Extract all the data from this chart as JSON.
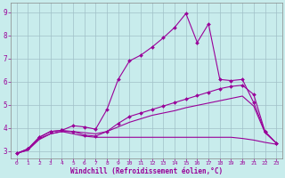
{
  "xlabel": "Windchill (Refroidissement éolien,°C)",
  "xlim": [
    -0.5,
    23.5
  ],
  "ylim": [
    2.7,
    9.4
  ],
  "xticks": [
    0,
    1,
    2,
    3,
    4,
    5,
    6,
    7,
    8,
    9,
    10,
    11,
    12,
    13,
    14,
    15,
    16,
    17,
    18,
    19,
    20,
    21,
    22,
    23
  ],
  "yticks": [
    3,
    4,
    5,
    6,
    7,
    8,
    9
  ],
  "background_color": "#c8ecec",
  "grid_color": "#a0c0c8",
  "line_color": "#990099",
  "line1_x": [
    0,
    1,
    2,
    3,
    4,
    5,
    6,
    7,
    8,
    9,
    10,
    11,
    12,
    13,
    14,
    15,
    16,
    17,
    18,
    19,
    20,
    21,
    22,
    23
  ],
  "line1_y": [
    2.9,
    3.1,
    3.6,
    3.85,
    3.9,
    4.1,
    4.05,
    3.95,
    4.8,
    6.1,
    6.9,
    7.15,
    7.5,
    7.9,
    8.35,
    8.95,
    7.7,
    8.5,
    6.1,
    6.05,
    6.1,
    5.1,
    3.85,
    3.35
  ],
  "line2_x": [
    0,
    1,
    2,
    3,
    4,
    5,
    6,
    7,
    8,
    9,
    10,
    11,
    12,
    13,
    14,
    15,
    16,
    17,
    18,
    19,
    20,
    21,
    22,
    23
  ],
  "line2_y": [
    2.9,
    3.1,
    3.6,
    3.85,
    3.9,
    3.85,
    3.7,
    3.65,
    3.85,
    4.2,
    4.5,
    4.65,
    4.8,
    4.95,
    5.1,
    5.25,
    5.4,
    5.55,
    5.7,
    5.8,
    5.85,
    5.45,
    3.85,
    3.35
  ],
  "line3_x": [
    0,
    1,
    2,
    3,
    4,
    5,
    6,
    7,
    8,
    9,
    10,
    11,
    12,
    13,
    14,
    15,
    16,
    17,
    18,
    19,
    20,
    21,
    22,
    23
  ],
  "line3_y": [
    2.9,
    3.05,
    3.5,
    3.75,
    3.85,
    3.85,
    3.8,
    3.75,
    3.85,
    4.05,
    4.25,
    4.4,
    4.55,
    4.65,
    4.75,
    4.88,
    4.98,
    5.08,
    5.18,
    5.28,
    5.38,
    4.95,
    3.8,
    3.35
  ],
  "line4_x": [
    0,
    1,
    2,
    3,
    4,
    5,
    6,
    7,
    8,
    9,
    10,
    11,
    12,
    13,
    14,
    15,
    16,
    17,
    18,
    19,
    20,
    21,
    22,
    23
  ],
  "line4_y": [
    2.9,
    3.05,
    3.55,
    3.75,
    3.85,
    3.75,
    3.65,
    3.6,
    3.6,
    3.6,
    3.6,
    3.6,
    3.6,
    3.6,
    3.6,
    3.6,
    3.6,
    3.6,
    3.6,
    3.6,
    3.55,
    3.48,
    3.38,
    3.3
  ]
}
